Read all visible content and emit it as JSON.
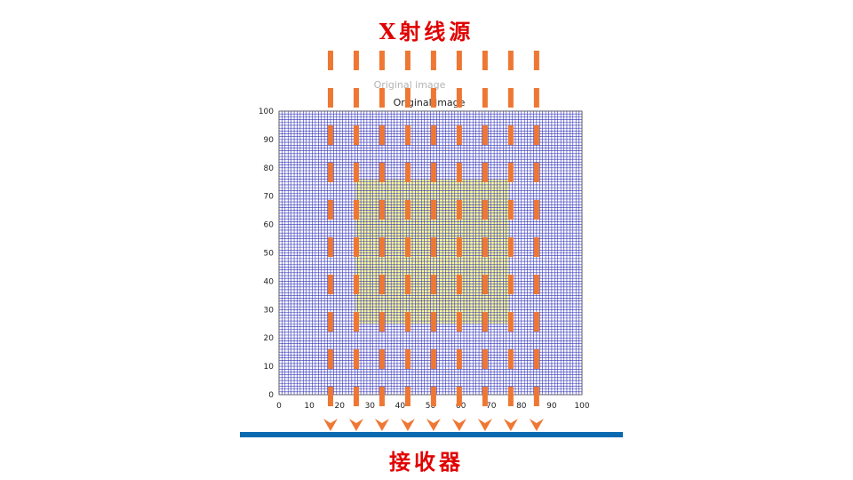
{
  "source_label": "X射线源",
  "receiver_label": "接收器",
  "plot": {
    "title": "Original image",
    "ghost_title": "Original image"
  },
  "colors": {
    "grid": "#3333bb",
    "background": "#ffffff",
    "phantom": "#ffff99",
    "ray": "#ee7733",
    "arrow": "#ee7733",
    "detector": "#0a6ab0",
    "label": "#e00000"
  },
  "chart_data": {
    "type": "heatmap",
    "title": "Original image",
    "xlim": [
      0,
      100
    ],
    "ylim": [
      0,
      100
    ],
    "xticks": [
      0,
      10,
      20,
      30,
      40,
      50,
      60,
      70,
      80,
      90,
      100
    ],
    "yticks": [
      0,
      10,
      20,
      30,
      40,
      50,
      60,
      70,
      80,
      90,
      100
    ],
    "grid_spacing": 1,
    "phantom_region": {
      "x": [
        25,
        76
      ],
      "y": [
        25,
        76
      ],
      "value": 1
    },
    "background_value": 0
  },
  "rays": {
    "count": 9,
    "x_values": [
      17,
      25.5,
      34,
      42.5,
      51,
      59.5,
      68,
      76.5,
      85
    ],
    "direction": "top-to-bottom"
  }
}
